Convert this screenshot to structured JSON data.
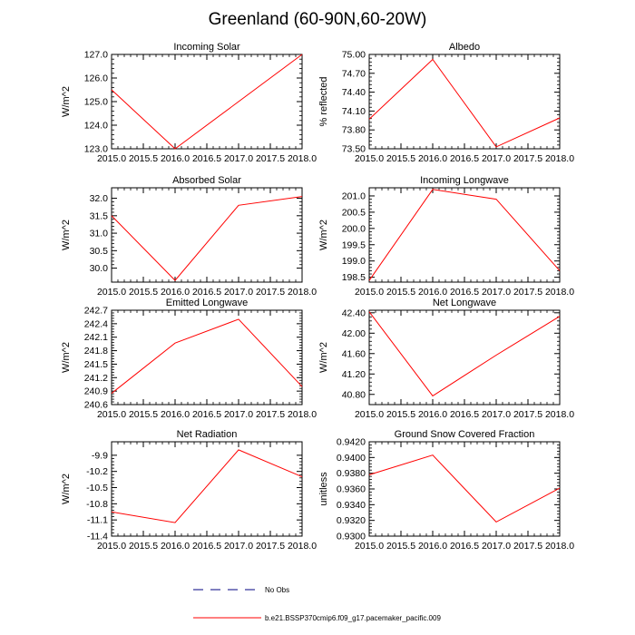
{
  "figure": {
    "title": "Greenland (60-90N,60-20W)",
    "legend": [
      {
        "label": "No Obs",
        "color": "#000080",
        "dash": true
      },
      {
        "label": "b.e21.BSSP370cmip6.f09_g17.pacemaker_pacific.009",
        "color": "#ff0000",
        "dash": false
      }
    ]
  },
  "chart_data": [
    {
      "type": "line",
      "title": "Incoming Solar",
      "ylabel": "W/m^2",
      "x": [
        2015,
        2016,
        2017,
        2018
      ],
      "xlim": [
        2015,
        2018
      ],
      "xticks": [
        "2015.0",
        "2015.5",
        "2016.0",
        "2016.5",
        "2017.0",
        "2017.5",
        "2018.0"
      ],
      "ylim": [
        123.0,
        127.0
      ],
      "yticks": [
        "123.0",
        "124.0",
        "125.0",
        "126.0",
        "127.0"
      ],
      "series": [
        {
          "values": [
            125.5,
            123.0,
            125.0,
            127.0
          ],
          "color": "#ff0000"
        }
      ]
    },
    {
      "type": "line",
      "title": "Albedo",
      "ylabel": "% reflected",
      "x": [
        2015,
        2016,
        2017,
        2018
      ],
      "xlim": [
        2015,
        2018
      ],
      "xticks": [
        "2015.0",
        "2015.5",
        "2016.0",
        "2016.5",
        "2017.0",
        "2017.5",
        "2018.0"
      ],
      "ylim": [
        73.5,
        75.0
      ],
      "yticks": [
        "73.50",
        "73.80",
        "74.10",
        "74.40",
        "74.70",
        "75.00"
      ],
      "series": [
        {
          "values": [
            73.97,
            74.92,
            73.53,
            73.99
          ],
          "color": "#ff0000"
        }
      ]
    },
    {
      "type": "line",
      "title": "Absorbed Solar",
      "ylabel": "W/m^2",
      "x": [
        2015,
        2016,
        2017,
        2018
      ],
      "xlim": [
        2015,
        2018
      ],
      "xticks": [
        "2015.0",
        "2015.5",
        "2016.0",
        "2016.5",
        "2017.0",
        "2017.5",
        "2018.0"
      ],
      "ylim": [
        29.6,
        32.3
      ],
      "yticks": [
        "30.0",
        "30.5",
        "31.0",
        "31.5",
        "32.0"
      ],
      "series": [
        {
          "values": [
            31.5,
            29.65,
            31.8,
            32.05
          ],
          "color": "#ff0000"
        }
      ]
    },
    {
      "type": "line",
      "title": "Incoming Longwave",
      "ylabel": "W/m^2",
      "x": [
        2015,
        2016,
        2017,
        2018
      ],
      "xlim": [
        2015,
        2018
      ],
      "xticks": [
        "2015.0",
        "2015.5",
        "2016.0",
        "2016.5",
        "2017.0",
        "2017.5",
        "2018.0"
      ],
      "ylim": [
        198.35,
        201.25
      ],
      "yticks": [
        "198.5",
        "199.0",
        "199.5",
        "200.0",
        "200.5",
        "201.0"
      ],
      "series": [
        {
          "values": [
            198.4,
            201.2,
            200.9,
            198.7
          ],
          "color": "#ff0000"
        }
      ]
    },
    {
      "type": "line",
      "title": "Emitted Longwave",
      "ylabel": "W/m^2",
      "x": [
        2015,
        2016,
        2017,
        2018
      ],
      "xlim": [
        2015,
        2018
      ],
      "xticks": [
        "2015.0",
        "2015.5",
        "2016.0",
        "2016.5",
        "2017.0",
        "2017.5",
        "2018.0"
      ],
      "ylim": [
        240.6,
        242.7
      ],
      "yticks": [
        "240.6",
        "240.9",
        "241.2",
        "241.5",
        "241.8",
        "242.1",
        "242.4",
        "242.7"
      ],
      "series": [
        {
          "values": [
            240.85,
            241.97,
            242.5,
            241.0
          ],
          "color": "#ff0000"
        }
      ]
    },
    {
      "type": "line",
      "title": "Net Longwave",
      "ylabel": "W/m^2",
      "x": [
        2015,
        2016,
        2017,
        2018
      ],
      "xlim": [
        2015,
        2018
      ],
      "xticks": [
        "2015.0",
        "2015.5",
        "2016.0",
        "2016.5",
        "2017.0",
        "2017.5",
        "2018.0"
      ],
      "ylim": [
        40.6,
        42.45
      ],
      "yticks": [
        "40.80",
        "41.20",
        "41.60",
        "42.00",
        "42.40"
      ],
      "series": [
        {
          "values": [
            42.42,
            40.77,
            41.57,
            42.33
          ],
          "color": "#ff0000"
        }
      ]
    },
    {
      "type": "line",
      "title": "Net Radiation",
      "ylabel": "W/m^2",
      "x": [
        2015,
        2016,
        2017,
        2018
      ],
      "xlim": [
        2015,
        2018
      ],
      "xticks": [
        "2015.0",
        "2015.5",
        "2016.0",
        "2016.5",
        "2017.0",
        "2017.5",
        "2018.0"
      ],
      "ylim": [
        -11.4,
        -9.65
      ],
      "yticks": [
        "-11.4",
        "-11.1",
        "-10.8",
        "-10.5",
        "-10.2",
        "-9.9"
      ],
      "series": [
        {
          "values": [
            -10.95,
            -11.15,
            -9.8,
            -10.3
          ],
          "color": "#ff0000"
        }
      ]
    },
    {
      "type": "line",
      "title": "Ground Snow Covered Fraction",
      "ylabel": "unitless",
      "x": [
        2015,
        2016,
        2017,
        2018
      ],
      "xlim": [
        2015,
        2018
      ],
      "xticks": [
        "2015.0",
        "2015.5",
        "2016.0",
        "2016.5",
        "2017.0",
        "2017.5",
        "2018.0"
      ],
      "ylim": [
        0.93,
        0.942
      ],
      "yticks": [
        "0.9300",
        "0.9320",
        "0.9340",
        "0.9360",
        "0.9380",
        "0.9400",
        "0.9420"
      ],
      "series": [
        {
          "values": [
            0.9378,
            0.9403,
            0.9318,
            0.9361
          ],
          "color": "#ff0000"
        }
      ]
    }
  ]
}
